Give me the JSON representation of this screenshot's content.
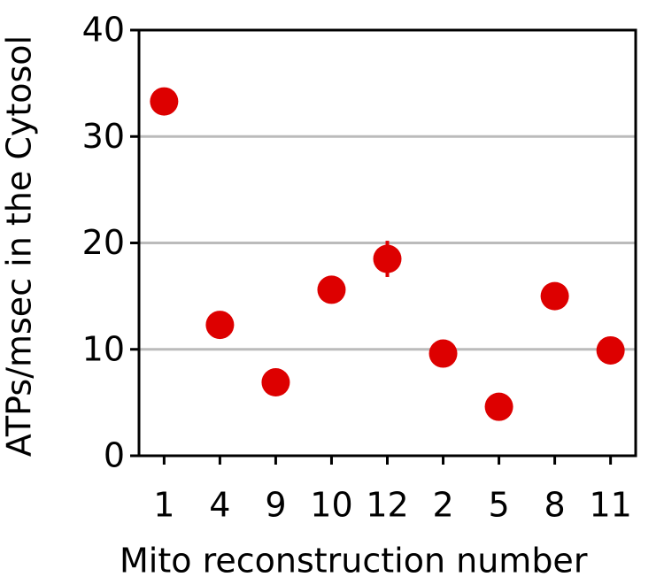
{
  "chart_data": {
    "type": "scatter",
    "x_label": "Mito reconstruction number",
    "y_label": "ATPs/msec in the Cytosol",
    "categories": [
      "1",
      "4",
      "9",
      "10",
      "12",
      "2",
      "5",
      "8",
      "11"
    ],
    "values": [
      33.3,
      12.3,
      6.9,
      15.6,
      18.5,
      9.6,
      4.6,
      15.0,
      9.9
    ],
    "errors": [
      null,
      null,
      null,
      null,
      1.7,
      null,
      null,
      null,
      null
    ],
    "color": "#dd0000",
    "ylim": [
      0,
      40
    ],
    "yticks": [
      0,
      10,
      20,
      30,
      40
    ],
    "grid": true
  }
}
